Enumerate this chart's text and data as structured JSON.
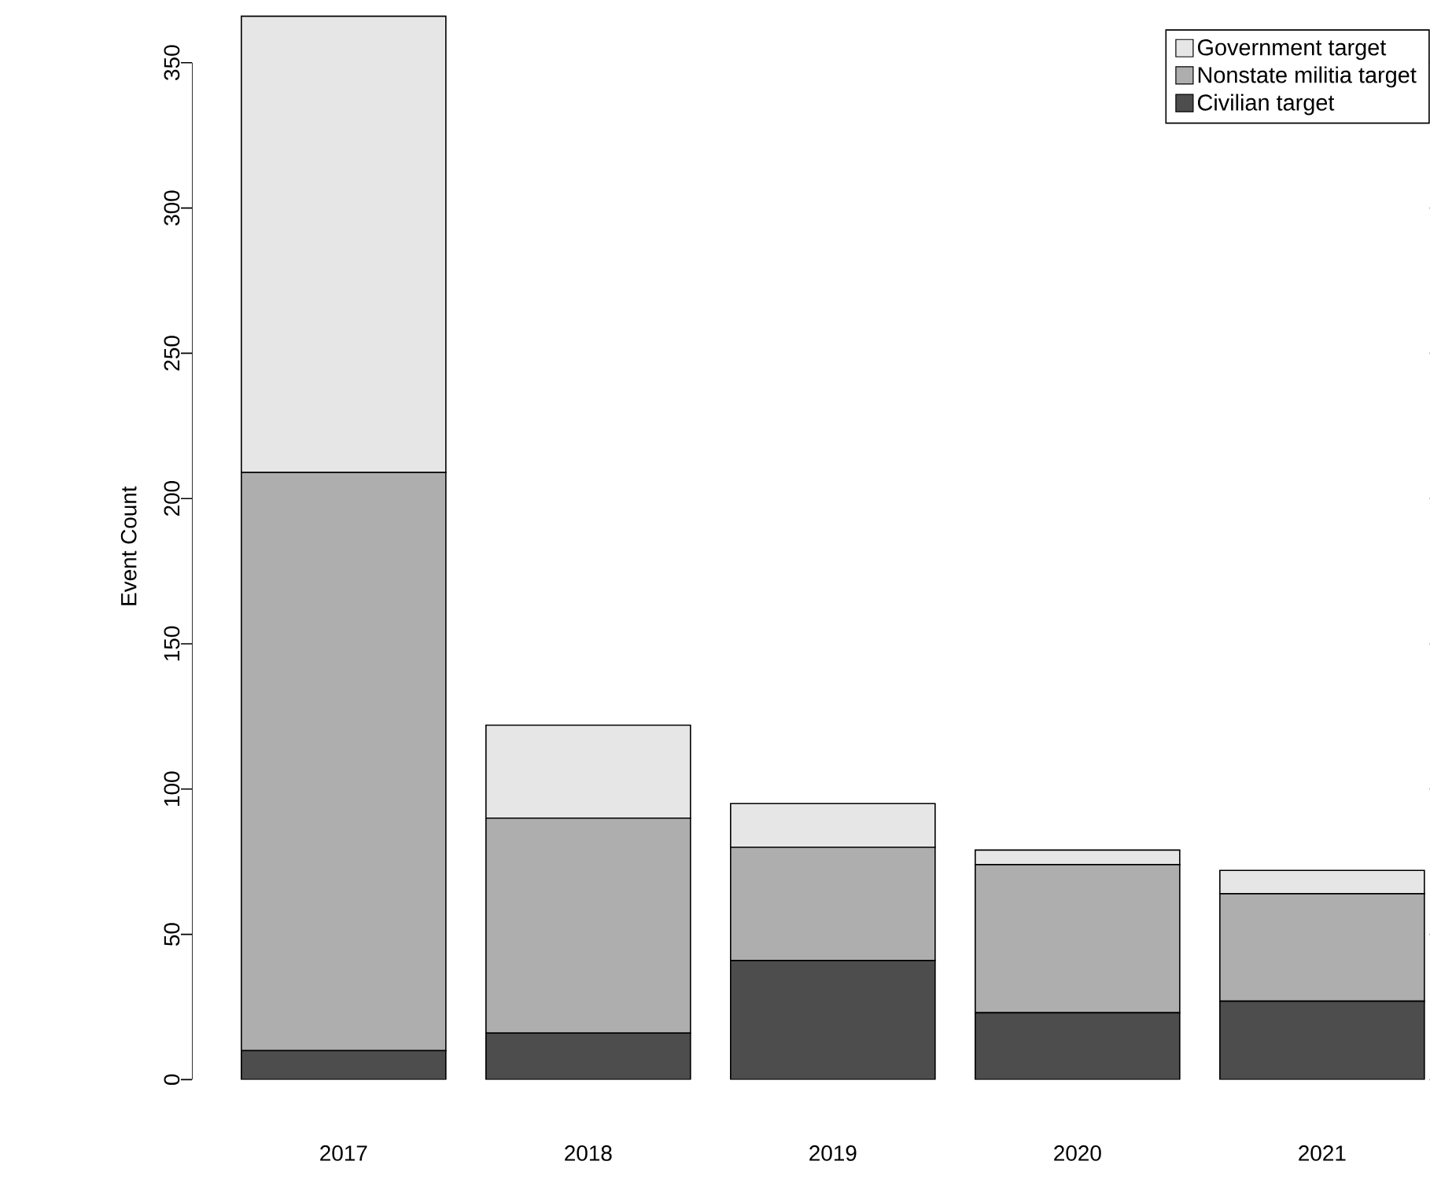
{
  "chart_data": {
    "type": "bar",
    "stacked": true,
    "ylabel": "Event Count",
    "categories": [
      "2017",
      "2018",
      "2019",
      "2020",
      "2021"
    ],
    "series": [
      {
        "name": "Civilian target",
        "color": "#4d4d4d",
        "values": [
          10,
          16,
          41,
          23,
          27
        ]
      },
      {
        "name": "Nonstate militia target",
        "color": "#aeaeae",
        "values": [
          199,
          74,
          39,
          51,
          37
        ]
      },
      {
        "name": "Government target",
        "color": "#e6e6e6",
        "values": [
          157,
          32,
          15,
          5,
          8
        ]
      }
    ],
    "ylim": [
      0,
      367
    ],
    "yticks": [
      0,
      50,
      100,
      150,
      200,
      250,
      300,
      350
    ],
    "grid": false,
    "legend": "top right"
  }
}
